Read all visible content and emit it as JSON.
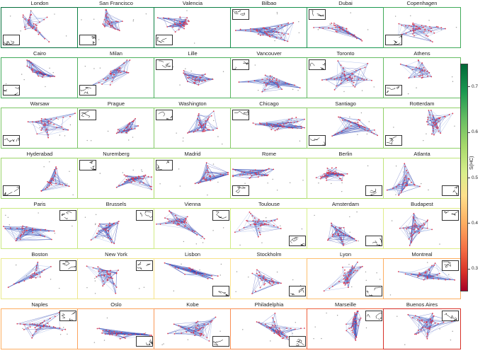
{
  "colorbar": {
    "label": "S(HC)",
    "ticks": [
      "0.7",
      "0.6",
      "0.5",
      "0.4",
      "0.3"
    ],
    "range": [
      0.25,
      0.75
    ]
  },
  "colors": {
    "edge_blue": "#1f2fa6",
    "edge_light": "#6f8fd8",
    "node_red": "#e0384f",
    "node_grey": "#9a9a9a"
  },
  "cities": [
    {
      "name": "London",
      "score": 0.74
    },
    {
      "name": "San Francisco",
      "score": 0.72
    },
    {
      "name": "Valencia",
      "score": 0.72
    },
    {
      "name": "Bilbao",
      "score": 0.7
    },
    {
      "name": "Dubai",
      "score": 0.69
    },
    {
      "name": "Copenhagen",
      "score": 0.66
    },
    {
      "name": "Cairo",
      "score": 0.66
    },
    {
      "name": "Milan",
      "score": 0.65
    },
    {
      "name": "Lille",
      "score": 0.65
    },
    {
      "name": "Vancouver",
      "score": 0.64
    },
    {
      "name": "Toronto",
      "score": 0.63
    },
    {
      "name": "Athens",
      "score": 0.63
    },
    {
      "name": "Warsaw",
      "score": 0.61
    },
    {
      "name": "Prague",
      "score": 0.61
    },
    {
      "name": "Washington",
      "score": 0.6
    },
    {
      "name": "Chicago",
      "score": 0.6
    },
    {
      "name": "Santiago",
      "score": 0.59
    },
    {
      "name": "Rotterdam",
      "score": 0.59
    },
    {
      "name": "Hyderabad",
      "score": 0.58
    },
    {
      "name": "Nuremberg",
      "score": 0.57
    },
    {
      "name": "Madrid",
      "score": 0.56
    },
    {
      "name": "Rome",
      "score": 0.56
    },
    {
      "name": "Berlin",
      "score": 0.55
    },
    {
      "name": "Atlanta",
      "score": 0.54
    },
    {
      "name": "Paris",
      "score": 0.53
    },
    {
      "name": "Brussels",
      "score": 0.53
    },
    {
      "name": "Vienna",
      "score": 0.52
    },
    {
      "name": "Toulouse",
      "score": 0.52
    },
    {
      "name": "Amsterdam",
      "score": 0.51
    },
    {
      "name": "Budapest",
      "score": 0.5
    },
    {
      "name": "Boston",
      "score": 0.49
    },
    {
      "name": "New York",
      "score": 0.48
    },
    {
      "name": "Lisbon",
      "score": 0.47
    },
    {
      "name": "Stockholm",
      "score": 0.46
    },
    {
      "name": "Lyon",
      "score": 0.42
    },
    {
      "name": "Montreal",
      "score": 0.4
    },
    {
      "name": "Naples",
      "score": 0.4
    },
    {
      "name": "Oslo",
      "score": 0.39
    },
    {
      "name": "Kobe",
      "score": 0.38
    },
    {
      "name": "Philadelphia",
      "score": 0.37
    },
    {
      "name": "Marseille",
      "score": 0.33
    },
    {
      "name": "Buenos Aires",
      "score": 0.29
    }
  ]
}
